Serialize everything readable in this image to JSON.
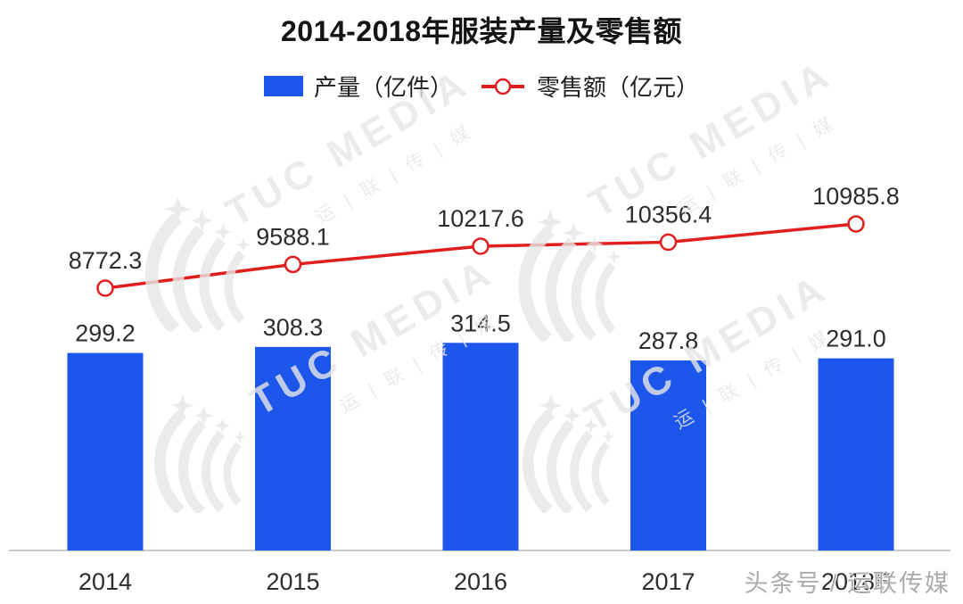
{
  "chart_data": {
    "type": "bar",
    "combo": "bar+line",
    "title": "2014-2018年服装产量及零售额",
    "categories": [
      "2014",
      "2015",
      "2016",
      "2017",
      "2018E"
    ],
    "series": [
      {
        "name": "产量（亿件）",
        "type": "bar",
        "color": "#1c56ea",
        "values": [
          299.2,
          308.3,
          314.5,
          287.8,
          291.0
        ],
        "value_labels": [
          "299.2",
          "308.3",
          "314.5",
          "287.8",
          "291.0"
        ]
      },
      {
        "name": "零售额（亿元）",
        "type": "line",
        "color": "#e11e1f",
        "marker": "open-circle",
        "values": [
          8772.3,
          9588.1,
          10217.6,
          10356.4,
          10985.8
        ],
        "value_labels": [
          "8772.3",
          "9588.1",
          "10217.6",
          "10356.4",
          "10985.8"
        ]
      }
    ],
    "legend_position": "top",
    "grid": false,
    "data_labels": true,
    "axis_color": "#c9c9c9",
    "label_color": "#2d2d2d"
  },
  "watermark": {
    "brand": "TUC MEDIA",
    "brand_cn": "运 | 联 | 传 | 媒",
    "logo_icon": "swoosh-arrows-icon",
    "color": "#e7e7e7"
  },
  "footer": {
    "overlay_text": "头条号 / 运联传媒"
  }
}
